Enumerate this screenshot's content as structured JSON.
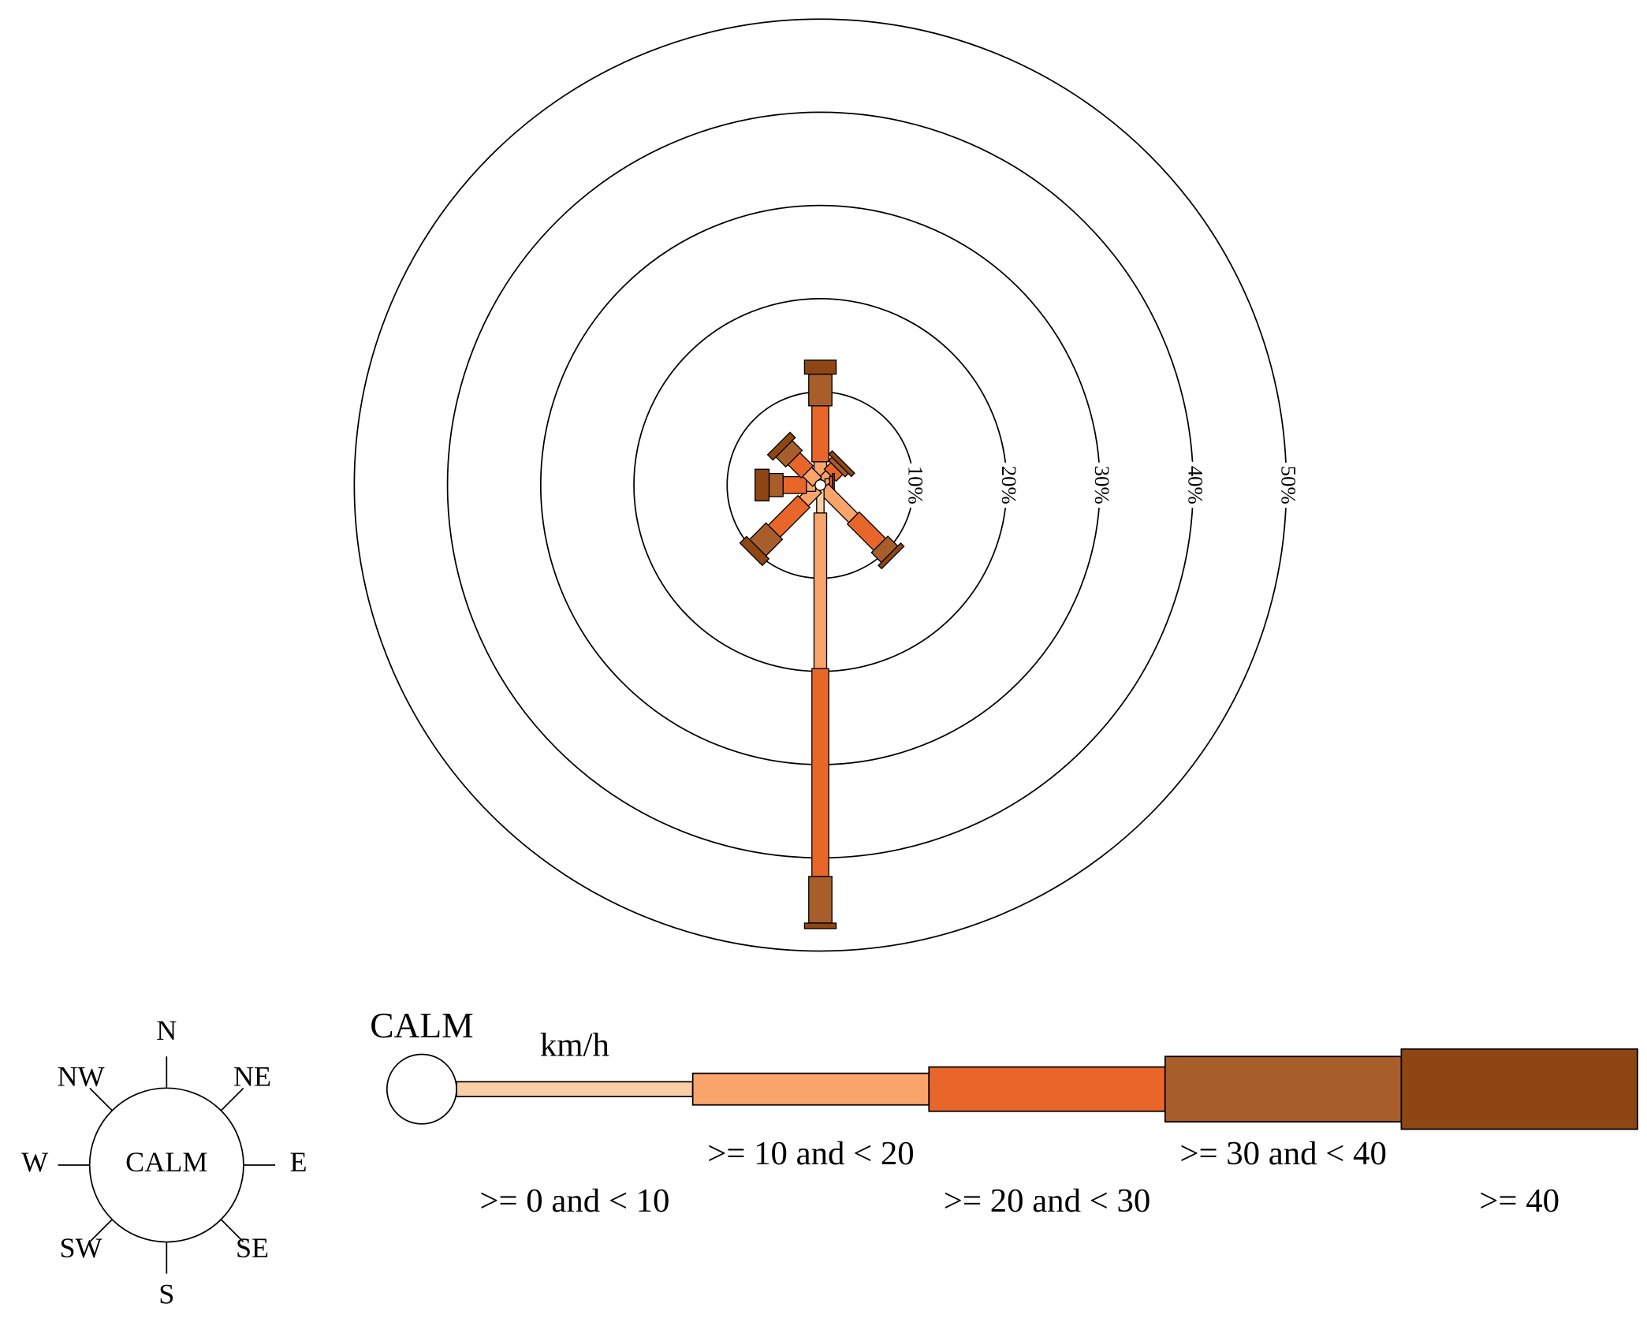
{
  "chart_data": {
    "type": "wind_rose",
    "directions": [
      "N",
      "NE",
      "E",
      "SE",
      "S",
      "SW",
      "W",
      "NW"
    ],
    "series": [
      {
        "name": ">= 0 and < 10",
        "color": "#f9cfa6",
        "values": [
          0.5,
          0.5,
          0.5,
          0.5,
          3,
          0.5,
          0.5,
          0.5
        ]
      },
      {
        "name": ">= 10 and < 20",
        "color": "#f9a46a",
        "values": [
          2,
          1,
          0.5,
          4.5,
          16.7,
          2,
          1,
          1.5
        ]
      },
      {
        "name": ">= 20 and < 30",
        "color": "#e8662a",
        "values": [
          6,
          1,
          0.3,
          4,
          22.3,
          4.5,
          2.5,
          2
        ]
      },
      {
        "name": ">= 30 and < 40",
        "color": "#a85e2b",
        "values": [
          3.4,
          0.5,
          0.2,
          1.5,
          5,
          2.5,
          1.5,
          1.5
        ]
      },
      {
        "name": ">= 40",
        "color": "#8e4714",
        "values": [
          1.5,
          0.5,
          0,
          0.5,
          0.6,
          1,
          1.5,
          0.8
        ]
      }
    ],
    "rlim": [
      0,
      50
    ],
    "rticks": [
      {
        "value": 10,
        "label": "10%"
      },
      {
        "value": 20,
        "label": "20%"
      },
      {
        "value": 30,
        "label": "30%"
      },
      {
        "value": 40,
        "label": "40%"
      },
      {
        "value": 50,
        "label": "50%"
      }
    ],
    "calm_label": "CALM",
    "unit": "km/h"
  }
}
